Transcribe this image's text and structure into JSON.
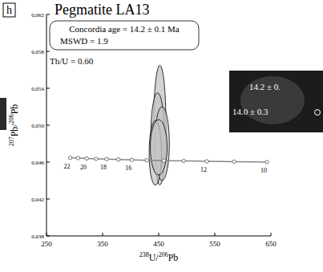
{
  "chart_data": {
    "type": "scatter",
    "panel_letter": "h",
    "title": "Pegmatite LA13",
    "annotations": [
      "Concordia age = 14.2 ± 0.1 Ma",
      "MSWD = 1.9"
    ],
    "th_u": "Th/U = 0.60",
    "inset_labels": [
      "14.2 ± 0.",
      "14.0 ± 0.3"
    ],
    "x_label": [
      {
        "text": "238",
        "sup": true
      },
      {
        "text": "U/"
      },
      {
        "text": "206",
        "sup": true
      },
      {
        "text": "Pb"
      }
    ],
    "y_label": [
      {
        "text": "207",
        "sup": true
      },
      {
        "text": "Pb/"
      },
      {
        "text": "206",
        "sup": true
      },
      {
        "text": "Pb"
      }
    ],
    "xlim": [
      250,
      650
    ],
    "xticks": [
      250,
      350,
      450,
      550,
      650
    ],
    "ylim": [
      0.038,
      0.062
    ],
    "yticks": [
      {
        "value": 0.038,
        "label": "0,038"
      },
      {
        "value": 0.042,
        "label": "0,042"
      },
      {
        "value": 0.046,
        "label": "0,046"
      },
      {
        "value": 0.05,
        "label": "0,050"
      },
      {
        "value": 0.054,
        "label": "0,054"
      },
      {
        "value": 0.058,
        "label": "0,058"
      },
      {
        "value": 0.062,
        "label": "0,062"
      }
    ],
    "color": "#c4c4c4",
    "points": [
      {
        "x": 452,
        "y": 0.05,
        "x_err": 11,
        "y_err": 0.0065
      },
      {
        "x": 448,
        "y": 0.049,
        "x_err": 12,
        "y_err": 0.0045
      },
      {
        "x": 456,
        "y": 0.048,
        "x_err": 13,
        "y_err": 0.004
      },
      {
        "x": 444,
        "y": 0.047,
        "x_err": 11,
        "y_err": 0.0035
      },
      {
        "x": 450,
        "y": 0.0476,
        "x_err": 15,
        "y_err": 0.003
      }
    ],
    "concordia": {
      "x": [
        292.3,
        306.2,
        321.5,
        338.4,
        357.2,
        378.2,
        401.8,
        428.6,
        459.2,
        494.5,
        535.7,
        584.5,
        642.9
      ],
      "y": [
        0.04647,
        0.04643,
        0.04639,
        0.04635,
        0.04632,
        0.04628,
        0.04624,
        0.0462,
        0.04616,
        0.04612,
        0.04608,
        0.04604,
        0.046
      ],
      "labels": [
        22,
        null,
        20,
        null,
        18,
        null,
        16,
        null,
        null,
        null,
        12,
        null,
        10
      ]
    }
  }
}
